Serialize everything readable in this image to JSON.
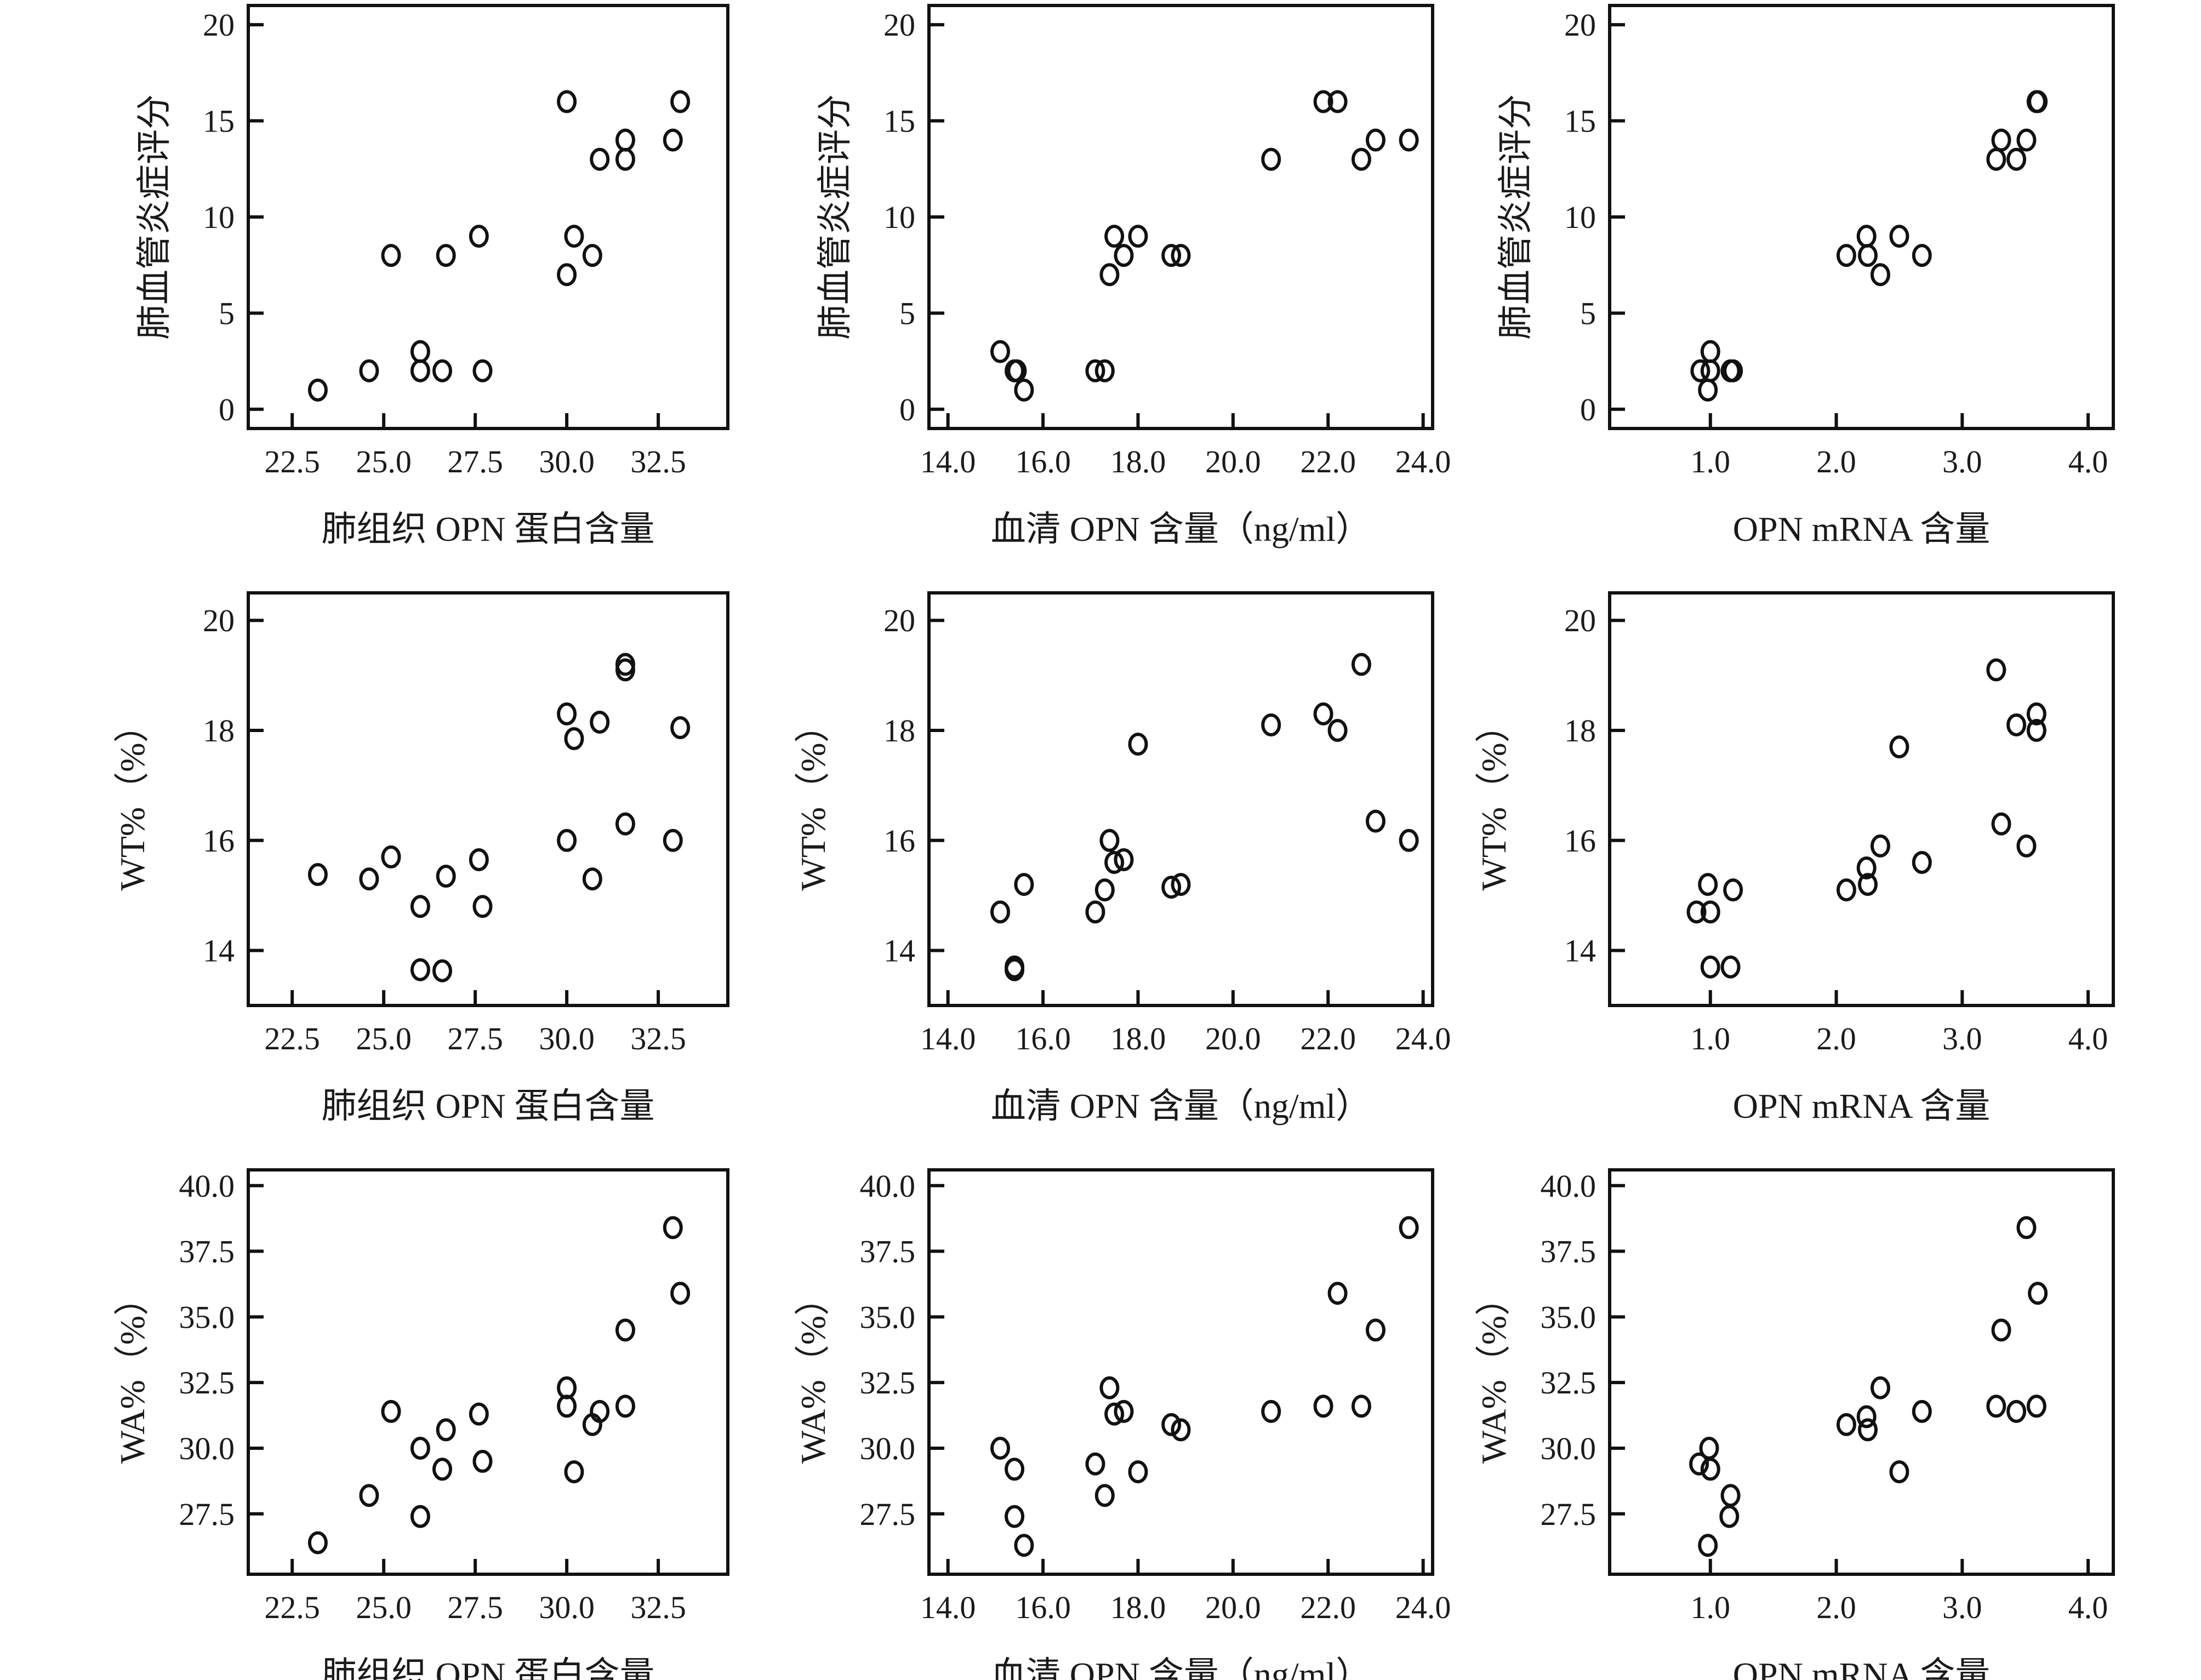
{
  "chart_data": [
    {
      "type": "scatter",
      "xlabel": "肺组织 OPN 蛋白含量",
      "ylabel": "肺血管炎症评分",
      "xlim": [
        21.3,
        34.4
      ],
      "ylim": [
        -1,
        21
      ],
      "xticks": [
        "22.5",
        "25.0",
        "27.5",
        "30.0",
        "32.5"
      ],
      "yticks": [
        "0",
        "5",
        "10",
        "15",
        "20"
      ],
      "points": [
        [
          23.2,
          1
        ],
        [
          24.6,
          2
        ],
        [
          25.2,
          8
        ],
        [
          26.0,
          3
        ],
        [
          26.0,
          2
        ],
        [
          26.6,
          2
        ],
        [
          26.7,
          8
        ],
        [
          27.6,
          9
        ],
        [
          27.7,
          2
        ],
        [
          30.0,
          16
        ],
        [
          30.0,
          7
        ],
        [
          30.2,
          9
        ],
        [
          30.7,
          8
        ],
        [
          30.9,
          13
        ],
        [
          31.6,
          14
        ],
        [
          31.6,
          13
        ],
        [
          32.9,
          14
        ],
        [
          33.1,
          16
        ]
      ]
    },
    {
      "type": "scatter",
      "xlabel": "血清 OPN 含量（ng/ml）",
      "ylabel": "肺血管炎症评分",
      "xlim": [
        13.6,
        24.2
      ],
      "ylim": [
        -1,
        21
      ],
      "xticks": [
        "14.0",
        "16.0",
        "18.0",
        "20.0",
        "22.0",
        "24.0"
      ],
      "yticks": [
        "0",
        "5",
        "10",
        "15",
        "20"
      ],
      "points": [
        [
          15.1,
          3
        ],
        [
          15.4,
          2
        ],
        [
          15.45,
          2
        ],
        [
          15.6,
          1
        ],
        [
          17.1,
          2
        ],
        [
          17.3,
          2
        ],
        [
          17.4,
          7
        ],
        [
          17.5,
          9
        ],
        [
          17.7,
          8
        ],
        [
          18.0,
          9
        ],
        [
          18.7,
          8
        ],
        [
          18.9,
          8
        ],
        [
          20.8,
          13
        ],
        [
          21.9,
          16
        ],
        [
          22.2,
          16
        ],
        [
          22.7,
          13
        ],
        [
          23.0,
          14
        ],
        [
          23.7,
          14
        ]
      ]
    },
    {
      "type": "scatter",
      "xlabel": "OPN mRNA 含量",
      "ylabel": "肺血管炎症评分",
      "xlim": [
        0.2,
        4.2
      ],
      "ylim": [
        -1,
        21
      ],
      "xticks": [
        "1.0",
        "2.0",
        "3.0",
        "4.0"
      ],
      "yticks": [
        "0",
        "5",
        "10",
        "15",
        "20"
      ],
      "points": [
        [
          1.0,
          3
        ],
        [
          0.92,
          2
        ],
        [
          1.0,
          2
        ],
        [
          0.98,
          1
        ],
        [
          1.16,
          2
        ],
        [
          1.18,
          2
        ],
        [
          2.08,
          8
        ],
        [
          2.24,
          9
        ],
        [
          2.25,
          8
        ],
        [
          2.35,
          7
        ],
        [
          2.5,
          9
        ],
        [
          2.68,
          8
        ],
        [
          3.27,
          13
        ],
        [
          3.31,
          14
        ],
        [
          3.43,
          13
        ],
        [
          3.51,
          14
        ],
        [
          3.59,
          16
        ],
        [
          3.6,
          16
        ]
      ]
    },
    {
      "type": "scatter",
      "xlabel": "肺组织 OPN 蛋白含量",
      "ylabel": "WT%（%）",
      "xlim": [
        21.3,
        34.4
      ],
      "ylim": [
        13.0,
        20.5
      ],
      "xticks": [
        "22.5",
        "25.0",
        "27.5",
        "30.0",
        "32.5"
      ],
      "yticks": [
        "14",
        "16",
        "18",
        "20"
      ],
      "points": [
        [
          23.2,
          15.38
        ],
        [
          24.6,
          15.3
        ],
        [
          25.2,
          15.7
        ],
        [
          26.0,
          14.8
        ],
        [
          26.0,
          13.65
        ],
        [
          26.6,
          13.63
        ],
        [
          26.7,
          15.35
        ],
        [
          27.6,
          15.65
        ],
        [
          27.7,
          14.8
        ],
        [
          30.0,
          18.3
        ],
        [
          30.0,
          16.0
        ],
        [
          30.2,
          17.85
        ],
        [
          30.7,
          15.3
        ],
        [
          30.9,
          18.15
        ],
        [
          31.6,
          19.2
        ],
        [
          31.6,
          19.1
        ],
        [
          31.6,
          16.3
        ],
        [
          32.9,
          16.0
        ],
        [
          33.1,
          18.05
        ]
      ]
    },
    {
      "type": "scatter",
      "xlabel": "血清 OPN 含量（ng/ml）",
      "ylabel": "WT%（%）",
      "xlim": [
        13.6,
        24.2
      ],
      "ylim": [
        13.0,
        20.5
      ],
      "xticks": [
        "14.0",
        "16.0",
        "18.0",
        "20.0",
        "22.0",
        "24.0"
      ],
      "yticks": [
        "14",
        "16",
        "18",
        "20"
      ],
      "points": [
        [
          15.1,
          14.7
        ],
        [
          15.4,
          13.7
        ],
        [
          15.4,
          13.65
        ],
        [
          15.6,
          15.2
        ],
        [
          17.1,
          14.7
        ],
        [
          17.3,
          15.1
        ],
        [
          17.4,
          16.0
        ],
        [
          17.5,
          15.6
        ],
        [
          17.7,
          15.65
        ],
        [
          18.0,
          17.75
        ],
        [
          18.7,
          15.15
        ],
        [
          18.9,
          15.2
        ],
        [
          20.8,
          18.1
        ],
        [
          21.9,
          18.3
        ],
        [
          22.2,
          18.0
        ],
        [
          22.7,
          19.2
        ],
        [
          23.0,
          16.35
        ],
        [
          23.7,
          16.0
        ]
      ]
    },
    {
      "type": "scatter",
      "xlabel": "OPN mRNA 含量",
      "ylabel": "WT%（%）",
      "xlim": [
        0.2,
        4.2
      ],
      "ylim": [
        13.0,
        20.5
      ],
      "xticks": [
        "1.0",
        "2.0",
        "3.0",
        "4.0"
      ],
      "yticks": [
        "14",
        "16",
        "18",
        "20"
      ],
      "points": [
        [
          3.27,
          19.1
        ],
        [
          3.59,
          18.3
        ],
        [
          3.43,
          18.1
        ],
        [
          3.59,
          18.0
        ],
        [
          2.5,
          17.7
        ],
        [
          3.31,
          16.3
        ],
        [
          3.51,
          15.9
        ],
        [
          2.35,
          15.9
        ],
        [
          2.68,
          15.6
        ],
        [
          2.24,
          15.5
        ],
        [
          2.25,
          15.2
        ],
        [
          2.08,
          15.1
        ],
        [
          0.98,
          15.2
        ],
        [
          1.18,
          15.1
        ],
        [
          0.89,
          14.7
        ],
        [
          1.0,
          14.7
        ],
        [
          1.0,
          13.7
        ],
        [
          1.16,
          13.7
        ]
      ]
    },
    {
      "type": "scatter",
      "xlabel": "肺组织 OPN 蛋白含量",
      "ylabel": "WA%（%）",
      "xlim": [
        21.3,
        34.4
      ],
      "ylim": [
        25.2,
        40.6
      ],
      "xticks": [
        "22.5",
        "25.0",
        "27.5",
        "30.0",
        "32.5"
      ],
      "yticks": [
        "27.5",
        "30.0",
        "32.5",
        "35.0",
        "37.5",
        "40.0"
      ],
      "points": [
        [
          23.2,
          26.4
        ],
        [
          24.6,
          28.2
        ],
        [
          25.2,
          31.4
        ],
        [
          26.0,
          30.0
        ],
        [
          26.0,
          27.4
        ],
        [
          26.6,
          29.2
        ],
        [
          26.7,
          30.7
        ],
        [
          27.6,
          31.3
        ],
        [
          27.7,
          29.5
        ],
        [
          30.0,
          32.3
        ],
        [
          30.0,
          31.6
        ],
        [
          30.2,
          29.1
        ],
        [
          30.7,
          30.9
        ],
        [
          30.9,
          31.4
        ],
        [
          31.6,
          34.5
        ],
        [
          31.6,
          31.6
        ],
        [
          32.9,
          38.4
        ],
        [
          33.1,
          35.9
        ]
      ]
    },
    {
      "type": "scatter",
      "xlabel": "血清 OPN 含量（ng/ml）",
      "ylabel": "WA%（%）",
      "xlim": [
        13.6,
        24.2
      ],
      "ylim": [
        25.2,
        40.6
      ],
      "xticks": [
        "14.0",
        "16.0",
        "18.0",
        "20.0",
        "22.0",
        "24.0"
      ],
      "yticks": [
        "27.5",
        "30.0",
        "32.5",
        "35.0",
        "37.5",
        "40.0"
      ],
      "points": [
        [
          15.1,
          30.0
        ],
        [
          15.4,
          29.2
        ],
        [
          15.4,
          27.4
        ],
        [
          15.6,
          26.3
        ],
        [
          17.1,
          29.4
        ],
        [
          17.3,
          28.2
        ],
        [
          17.4,
          32.3
        ],
        [
          17.5,
          31.3
        ],
        [
          17.7,
          31.4
        ],
        [
          18.0,
          29.1
        ],
        [
          18.7,
          30.9
        ],
        [
          18.9,
          30.7
        ],
        [
          20.8,
          31.4
        ],
        [
          21.9,
          31.6
        ],
        [
          22.2,
          35.9
        ],
        [
          22.7,
          31.6
        ],
        [
          23.0,
          34.5
        ],
        [
          23.7,
          38.4
        ]
      ]
    },
    {
      "type": "scatter",
      "xlabel": "OPN mRNA 含量",
      "ylabel": "WA%（%）",
      "xlim": [
        0.2,
        4.2
      ],
      "ylim": [
        25.2,
        40.6
      ],
      "xticks": [
        "1.0",
        "2.0",
        "3.0",
        "4.0"
      ],
      "yticks": [
        "27.5",
        "30.0",
        "32.5",
        "35.0",
        "37.5",
        "40.0"
      ],
      "points": [
        [
          0.91,
          29.4
        ],
        [
          0.99,
          30.0
        ],
        [
          1.0,
          29.2
        ],
        [
          0.98,
          26.3
        ],
        [
          1.16,
          28.2
        ],
        [
          1.15,
          27.4
        ],
        [
          2.08,
          30.9
        ],
        [
          2.24,
          31.2
        ],
        [
          2.25,
          30.7
        ],
        [
          2.35,
          32.3
        ],
        [
          2.5,
          29.1
        ],
        [
          2.68,
          31.4
        ],
        [
          3.27,
          31.6
        ],
        [
          3.31,
          34.5
        ],
        [
          3.43,
          31.4
        ],
        [
          3.51,
          38.4
        ],
        [
          3.59,
          31.6
        ],
        [
          3.6,
          35.9
        ]
      ]
    }
  ]
}
